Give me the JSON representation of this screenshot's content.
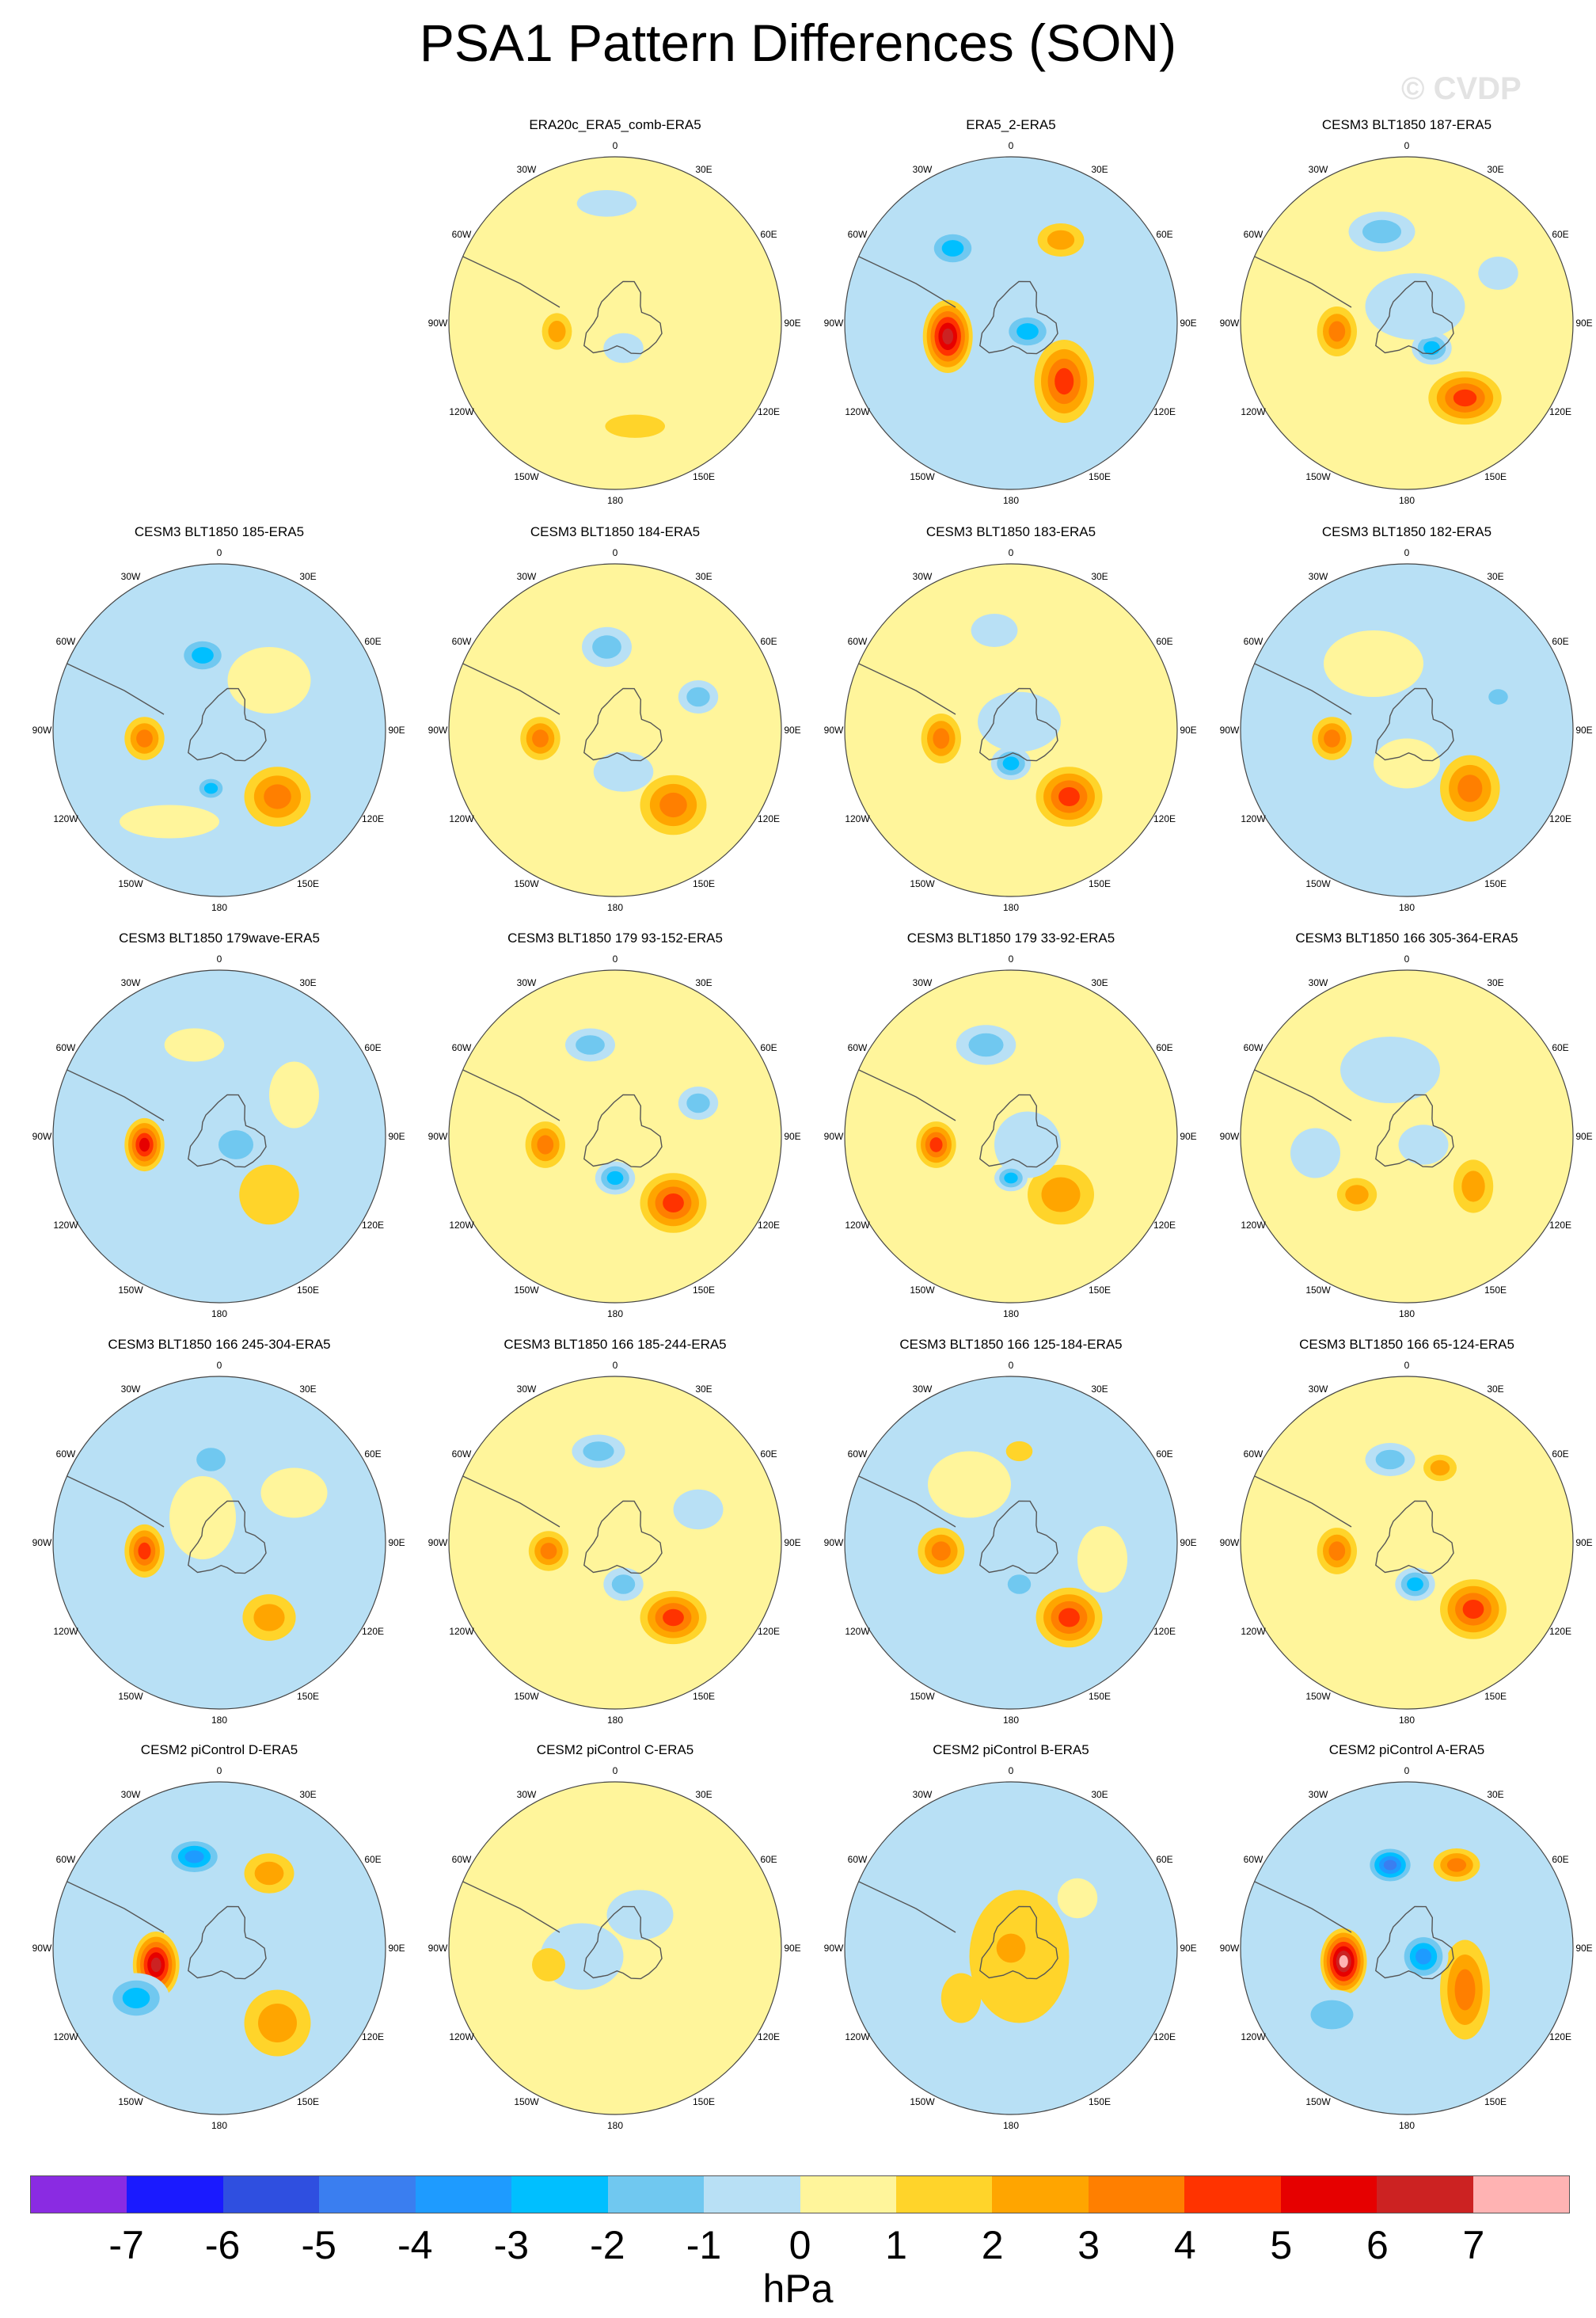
{
  "title": "PSA1 Pattern Differences (SON)",
  "watermark": "© CVDP",
  "units": "hPa",
  "lon_labels": [
    "0",
    "30E",
    "60E",
    "90E",
    "120E",
    "150E",
    "180",
    "150W",
    "120W",
    "90W",
    "60W",
    "30W"
  ],
  "palette": [
    "#8a2be2",
    "#1a1aff",
    "#2f4fe0",
    "#3a7ef0",
    "#1e9bff",
    "#00bfff",
    "#70c8f0",
    "#b8e0f5",
    "#fff59b",
    "#ffd42a",
    "#ffa500",
    "#ff7f00",
    "#ff3300",
    "#e60000",
    "#cc2222",
    "#ffb3b3"
  ],
  "colorbar_labels": [
    "-7",
    "-6",
    "-5",
    "-4",
    "-3",
    "-2",
    "-1",
    "0",
    "1",
    "2",
    "3",
    "4",
    "5",
    "6",
    "7"
  ],
  "panels": [
    {
      "title": "ERA20c_ERA5_comb-ERA5",
      "bg": 0,
      "blobs": [
        [
          -0.35,
          0.05,
          0.09,
          0.11,
          2
        ],
        [
          0.05,
          0.15,
          0.12,
          0.09,
          -1
        ],
        [
          0.12,
          0.62,
          0.18,
          0.07,
          1
        ],
        [
          -0.05,
          -0.72,
          0.18,
          0.08,
          -1
        ]
      ]
    },
    {
      "title": "ERA5_2-ERA5",
      "bg": -1,
      "blobs": [
        [
          -0.38,
          0.08,
          0.15,
          0.22,
          6
        ],
        [
          0.32,
          0.35,
          0.18,
          0.25,
          4
        ],
        [
          -0.35,
          -0.45,
          0.16,
          0.12,
          -3
        ],
        [
          0.1,
          0.05,
          0.16,
          0.12,
          -3
        ],
        [
          0.3,
          -0.5,
          0.14,
          0.1,
          2
        ],
        [
          -0.05,
          0.62,
          0.2,
          0.08,
          -1
        ]
      ]
    },
    {
      "title": "CESM3 BLT1850 187-ERA5",
      "bg": 0,
      "blobs": [
        [
          -0.42,
          0.05,
          0.12,
          0.15,
          3
        ],
        [
          0.35,
          0.45,
          0.22,
          0.16,
          4
        ],
        [
          -0.15,
          -0.55,
          0.2,
          0.12,
          -2
        ],
        [
          0.15,
          0.15,
          0.12,
          0.1,
          -3
        ],
        [
          0.05,
          -0.1,
          0.3,
          0.2,
          -1
        ],
        [
          0.55,
          -0.3,
          0.12,
          0.1,
          -1
        ]
      ]
    },
    {
      "title": "CESM3 BLT1850 185-ERA5",
      "bg": -1,
      "blobs": [
        [
          -0.45,
          0.05,
          0.12,
          0.13,
          3
        ],
        [
          0.35,
          0.4,
          0.2,
          0.18,
          3
        ],
        [
          -0.1,
          -0.45,
          0.16,
          0.12,
          -3
        ],
        [
          -0.05,
          0.35,
          0.1,
          0.08,
          -3
        ],
        [
          0.3,
          -0.3,
          0.25,
          0.2,
          0
        ],
        [
          -0.3,
          0.55,
          0.3,
          0.1,
          0
        ]
      ]
    },
    {
      "title": "CESM3 BLT1850 184-ERA5",
      "bg": 0,
      "blobs": [
        [
          -0.45,
          0.05,
          0.12,
          0.13,
          3
        ],
        [
          0.35,
          0.45,
          0.2,
          0.18,
          3
        ],
        [
          -0.05,
          -0.5,
          0.15,
          0.12,
          -2
        ],
        [
          0.05,
          0.25,
          0.18,
          0.12,
          -1
        ],
        [
          0.5,
          -0.2,
          0.12,
          0.1,
          -2
        ]
      ]
    },
    {
      "title": "CESM3 BLT1850 183-ERA5",
      "bg": 0,
      "blobs": [
        [
          -0.42,
          0.05,
          0.12,
          0.15,
          3
        ],
        [
          0.35,
          0.4,
          0.2,
          0.18,
          4
        ],
        [
          -0.1,
          -0.6,
          0.14,
          0.1,
          -1
        ],
        [
          0.0,
          0.2,
          0.12,
          0.1,
          -3
        ],
        [
          0.05,
          -0.05,
          0.25,
          0.18,
          -1
        ]
      ]
    },
    {
      "title": "CESM3 BLT1850 182-ERA5",
      "bg": -1,
      "blobs": [
        [
          -0.45,
          0.05,
          0.12,
          0.13,
          3
        ],
        [
          0.38,
          0.35,
          0.18,
          0.2,
          3
        ],
        [
          -0.2,
          -0.4,
          0.3,
          0.2,
          0
        ],
        [
          0.0,
          0.2,
          0.2,
          0.15,
          0
        ],
        [
          0.55,
          -0.2,
          0.1,
          0.08,
          -2
        ]
      ]
    },
    {
      "title": "CESM3 BLT1850 179wave-ERA5",
      "bg": -1,
      "blobs": [
        [
          -0.45,
          0.05,
          0.12,
          0.16,
          5
        ],
        [
          0.3,
          0.35,
          0.18,
          0.18,
          1
        ],
        [
          -0.15,
          -0.55,
          0.18,
          0.1,
          0
        ],
        [
          0.1,
          0.05,
          0.18,
          0.15,
          -2
        ],
        [
          0.45,
          -0.25,
          0.15,
          0.2,
          0
        ],
        [
          -0.4,
          0.45,
          0.1,
          0.15,
          -1
        ]
      ]
    },
    {
      "title": "CESM3 BLT1850 179 93-152-ERA5",
      "bg": 0,
      "blobs": [
        [
          -0.42,
          0.05,
          0.12,
          0.14,
          3
        ],
        [
          0.35,
          0.4,
          0.2,
          0.18,
          4
        ],
        [
          -0.15,
          -0.55,
          0.15,
          0.1,
          -2
        ],
        [
          0.0,
          0.25,
          0.12,
          0.1,
          -3
        ],
        [
          0.5,
          -0.2,
          0.12,
          0.1,
          -2
        ]
      ]
    },
    {
      "title": "CESM3 BLT1850 179 33-92-ERA5",
      "bg": 0,
      "blobs": [
        [
          -0.45,
          0.05,
          0.12,
          0.14,
          4
        ],
        [
          0.3,
          0.35,
          0.2,
          0.18,
          2
        ],
        [
          -0.15,
          -0.55,
          0.18,
          0.12,
          -2
        ],
        [
          0.1,
          0.05,
          0.2,
          0.2,
          -1
        ],
        [
          0.0,
          0.25,
          0.1,
          0.08,
          -3
        ]
      ]
    },
    {
      "title": "CESM3 BLT1850 166 305-364-ERA5",
      "bg": 0,
      "blobs": [
        [
          -0.3,
          0.35,
          0.12,
          0.1,
          2
        ],
        [
          0.4,
          0.3,
          0.12,
          0.16,
          2
        ],
        [
          -0.1,
          -0.4,
          0.3,
          0.2,
          -1
        ],
        [
          0.1,
          0.05,
          0.15,
          0.12,
          -1
        ],
        [
          -0.55,
          0.1,
          0.15,
          0.15,
          -1
        ]
      ]
    },
    {
      "title": "CESM3 BLT1850 166 245-304-ERA5",
      "bg": -1,
      "blobs": [
        [
          -0.45,
          0.05,
          0.12,
          0.16,
          4
        ],
        [
          0.3,
          0.45,
          0.16,
          0.14,
          2
        ],
        [
          -0.05,
          -0.5,
          0.15,
          0.12,
          -2
        ],
        [
          0.1,
          0.05,
          0.2,
          0.2,
          -1
        ],
        [
          0.45,
          -0.3,
          0.2,
          0.15,
          0
        ],
        [
          -0.1,
          -0.15,
          0.2,
          0.25,
          0
        ]
      ]
    },
    {
      "title": "CESM3 BLT1850 166 185-244-ERA5",
      "bg": 0,
      "blobs": [
        [
          -0.4,
          0.05,
          0.12,
          0.12,
          3
        ],
        [
          0.35,
          0.45,
          0.2,
          0.16,
          4
        ],
        [
          -0.1,
          -0.55,
          0.16,
          0.1,
          -2
        ],
        [
          0.05,
          0.25,
          0.12,
          0.1,
          -2
        ],
        [
          0.5,
          -0.2,
          0.15,
          0.12,
          -1
        ]
      ]
    },
    {
      "title": "CESM3 BLT1850 166 125-184-ERA5",
      "bg": -1,
      "blobs": [
        [
          -0.42,
          0.05,
          0.14,
          0.14,
          3
        ],
        [
          0.35,
          0.45,
          0.2,
          0.18,
          4
        ],
        [
          -0.25,
          -0.35,
          0.25,
          0.2,
          0
        ],
        [
          0.05,
          0.25,
          0.12,
          0.1,
          -2
        ],
        [
          0.05,
          -0.55,
          0.08,
          0.06,
          1
        ],
        [
          0.55,
          0.1,
          0.15,
          0.2,
          0
        ]
      ]
    },
    {
      "title": "CESM3 BLT1850 166 65-124-ERA5",
      "bg": 0,
      "blobs": [
        [
          -0.42,
          0.05,
          0.12,
          0.14,
          3
        ],
        [
          0.4,
          0.4,
          0.2,
          0.18,
          4
        ],
        [
          -0.1,
          -0.5,
          0.15,
          0.1,
          -2
        ],
        [
          0.05,
          0.25,
          0.12,
          0.1,
          -3
        ],
        [
          0.2,
          -0.45,
          0.1,
          0.08,
          2
        ]
      ]
    },
    {
      "title": "CESM2 piControl D-ERA5",
      "bg": -1,
      "blobs": [
        [
          -0.38,
          0.1,
          0.14,
          0.2,
          6
        ],
        [
          0.35,
          0.45,
          0.2,
          0.2,
          2
        ],
        [
          -0.15,
          -0.55,
          0.18,
          0.12,
          -4
        ],
        [
          0.3,
          -0.45,
          0.15,
          0.12,
          2
        ],
        [
          -0.5,
          0.3,
          0.2,
          0.15,
          -3
        ],
        [
          0.1,
          0.05,
          0.18,
          0.15,
          -1
        ]
      ]
    },
    {
      "title": "CESM2 piControl C-ERA5",
      "bg": 0,
      "blobs": [
        [
          -0.2,
          0.05,
          0.25,
          0.2,
          -1
        ],
        [
          0.15,
          -0.2,
          0.2,
          0.15,
          -1
        ],
        [
          0.3,
          0.35,
          0.15,
          0.1,
          0
        ],
        [
          -0.4,
          0.1,
          0.1,
          0.1,
          1
        ]
      ]
    },
    {
      "title": "CESM2 piControl B-ERA5",
      "bg": -1,
      "blobs": [
        [
          0.05,
          0.05,
          0.3,
          0.4,
          1
        ],
        [
          0.0,
          0.0,
          0.15,
          0.15,
          2
        ],
        [
          -0.3,
          0.3,
          0.12,
          0.15,
          1
        ],
        [
          0.4,
          -0.3,
          0.12,
          0.12,
          0
        ]
      ]
    },
    {
      "title": "CESM2 piControl A-ERA5",
      "bg": -1,
      "blobs": [
        [
          -0.38,
          0.08,
          0.14,
          0.2,
          7
        ],
        [
          0.35,
          0.25,
          0.15,
          0.3,
          3
        ],
        [
          0.3,
          -0.5,
          0.14,
          0.1,
          3
        ],
        [
          -0.1,
          -0.5,
          0.15,
          0.12,
          -5
        ],
        [
          0.1,
          0.05,
          0.15,
          0.15,
          -4
        ],
        [
          -0.45,
          0.4,
          0.22,
          0.15,
          -2
        ]
      ]
    }
  ]
}
